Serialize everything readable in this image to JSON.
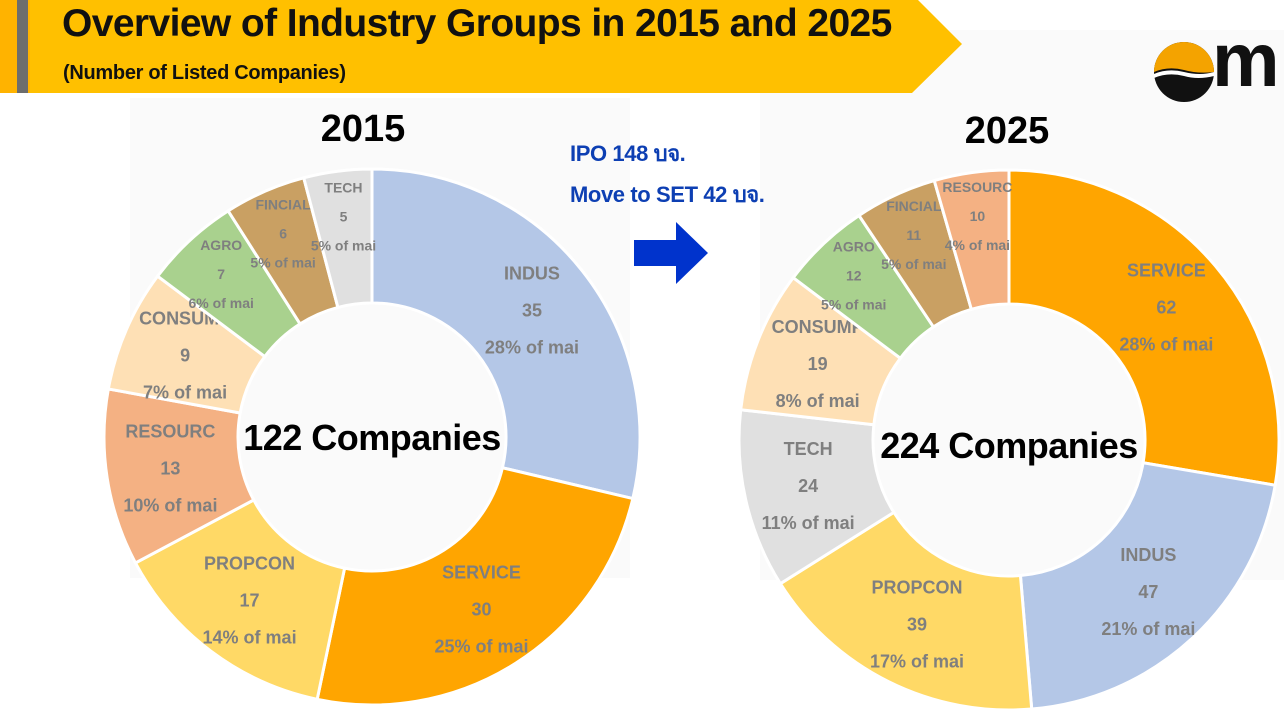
{
  "header": {
    "title": "Overview of Industry Groups in 2015 and 2025",
    "subtitle": "(Number of Listed Companies)"
  },
  "logo": {
    "text": "m"
  },
  "notes": {
    "ipo": "IPO 148 บจ.",
    "move": "Move to SET 42 บจ."
  },
  "colors": {
    "header": "#ffc000",
    "note_text": "#0d3fb3",
    "arrow": "#0033cc",
    "label_text": "#7f7f7f"
  },
  "chart_data": [
    {
      "type": "pie",
      "donut": true,
      "title": "2015",
      "center_label": "122 Companies",
      "categories": [
        "INDUS",
        "SERVICE",
        "PROPCON",
        "RESOURC",
        "CONSUMP",
        "AGRO",
        "FINCIAL",
        "TECH"
      ],
      "values": [
        35,
        30,
        17,
        13,
        9,
        7,
        6,
        5
      ],
      "share_labels": [
        "28% of mai",
        "25% of mai",
        "14% of mai",
        "10% of mai",
        "7% of mai",
        "6% of mai",
        "5% of mai",
        "5% of mai"
      ],
      "colors": [
        "#b4c7e7",
        "#ffa500",
        "#ffd966",
        "#f4b183",
        "#fee0b5",
        "#a9d18e",
        "#c9a063",
        "#e0e0e0"
      ]
    },
    {
      "type": "pie",
      "donut": true,
      "title": "2025",
      "center_label": "224 Companies",
      "categories": [
        "SERVICE",
        "INDUS",
        "PROPCON",
        "TECH",
        "CONSUMP",
        "AGRO",
        "FINCIAL",
        "RESOURC"
      ],
      "values": [
        62,
        47,
        39,
        24,
        19,
        12,
        11,
        10
      ],
      "share_labels": [
        "28% of mai",
        "21% of mai",
        "17% of mai",
        "11% of mai",
        "8% of mai",
        "5% of mai",
        "5% of mai",
        "4% of mai"
      ],
      "colors": [
        "#ffa500",
        "#b4c7e7",
        "#ffd966",
        "#e0e0e0",
        "#fee0b5",
        "#a9d18e",
        "#c9a063",
        "#f4b183"
      ]
    }
  ]
}
